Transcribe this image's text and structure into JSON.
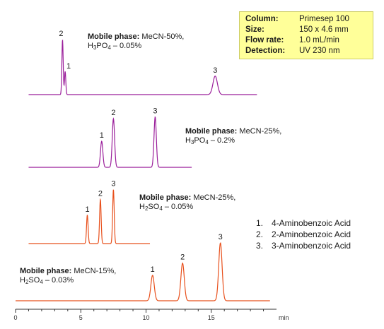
{
  "chart_data": [
    {
      "type": "line",
      "title": "",
      "xlabel": "min",
      "xlim": [
        0,
        20
      ],
      "x_ticks": [
        "0",
        "5",
        "10",
        "15"
      ],
      "chromatograms": [
        {
          "label": "Mobile phase: MeCN-50%, H3PO4 – 0.05%",
          "phase_bold": "Mobile phase:",
          "phase_line1": "MeCN-50%,",
          "phase_line2_prefix": "H",
          "phase_line2_sub1": "3",
          "phase_line2_mid": "PO",
          "phase_line2_sub2": "4",
          "phase_line2_suffix": " – 0.05%",
          "color": "#9b1f9b",
          "x_end": 18.5,
          "peaks": [
            {
              "label": "2",
              "time": 3.6,
              "height": 0.95
            },
            {
              "label": "1",
              "time": 3.8,
              "height": 0.4
            },
            {
              "label": "3",
              "time": 15.3,
              "height": 0.32
            }
          ]
        },
        {
          "label": "Mobile phase: MeCN-25%, H3PO4 – 0.2%",
          "phase_bold": "Mobile phase:",
          "phase_line1": "MeCN-25%,",
          "phase_line2_prefix": "H",
          "phase_line2_sub1": "3",
          "phase_line2_mid": "PO",
          "phase_line2_sub2": "4",
          "phase_line2_suffix": " – 0.2%",
          "color": "#9b1f9b",
          "x_end": 13.5,
          "peaks": [
            {
              "label": "1",
              "time": 6.6,
              "height": 0.45
            },
            {
              "label": "2",
              "time": 7.5,
              "height": 0.84
            },
            {
              "label": "3",
              "time": 10.7,
              "height": 0.87
            }
          ]
        },
        {
          "label": "Mobile phase: MeCN-25%, H2SO4 – 0.05%",
          "phase_bold": "Mobile phase:",
          "phase_line1": "MeCN-25%,",
          "phase_line2_prefix": "H",
          "phase_line2_sub1": "2",
          "phase_line2_mid": "SO",
          "phase_line2_sub2": "4",
          "phase_line2_suffix": " – 0.05%",
          "color": "#e8501c",
          "x_end": 10.3,
          "peaks": [
            {
              "label": "1",
              "time": 5.5,
              "height": 0.49
            },
            {
              "label": "2",
              "time": 6.5,
              "height": 0.76
            },
            {
              "label": "3",
              "time": 7.5,
              "height": 0.93
            }
          ]
        },
        {
          "label": "Mobile phase: MeCN-15%, H2SO4 – 0.03%",
          "phase_bold": "Mobile phase:",
          "phase_line1": "MeCN-15%,",
          "phase_line2_prefix": "H",
          "phase_line2_sub1": "2",
          "phase_line2_mid": "SO",
          "phase_line2_sub2": "4",
          "phase_line2_suffix": " – 0.03%",
          "color": "#e8501c",
          "x_end": 19.5,
          "peaks": [
            {
              "label": "1",
              "time": 10.5,
              "height": 0.44
            },
            {
              "label": "2",
              "time": 12.8,
              "height": 0.65
            },
            {
              "label": "3",
              "time": 15.7,
              "height": 1.0
            }
          ]
        }
      ]
    }
  ],
  "info_box": {
    "rows": [
      {
        "key": "Column:",
        "value": "Primesep 100"
      },
      {
        "key": "Size:",
        "value": "150 x 4.6  mm"
      },
      {
        "key": "Flow rate:",
        "value": "1.0  mL/min"
      },
      {
        "key": "Detection:",
        "value": "UV 230 nm"
      }
    ]
  },
  "legend": [
    {
      "num": "1.",
      "name": "4-Aminobenzoic Acid"
    },
    {
      "num": "2.",
      "name": "2-Aminobenzoic Acid"
    },
    {
      "num": "3.",
      "name": "3-Aminobenzoic Acid"
    }
  ]
}
